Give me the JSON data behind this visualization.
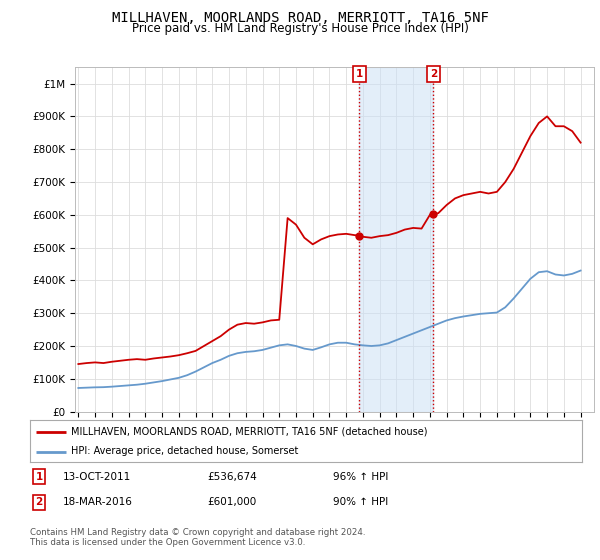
{
  "title": "MILLHAVEN, MOORLANDS ROAD, MERRIOTT, TA16 5NF",
  "subtitle": "Price paid vs. HM Land Registry's House Price Index (HPI)",
  "title_fontsize": 10,
  "subtitle_fontsize": 8.5,
  "ylim": [
    0,
    1050000
  ],
  "yticks": [
    0,
    100000,
    200000,
    300000,
    400000,
    500000,
    600000,
    700000,
    800000,
    900000,
    1000000
  ],
  "ytick_labels": [
    "£0",
    "£100K",
    "£200K",
    "£300K",
    "£400K",
    "£500K",
    "£600K",
    "£700K",
    "£800K",
    "£900K",
    "£1M"
  ],
  "xlim_start": 1994.8,
  "xlim_end": 2025.8,
  "transaction1_date": 2011.79,
  "transaction1_price": 536674,
  "transaction1_label": "1",
  "transaction2_date": 2016.21,
  "transaction2_price": 601000,
  "transaction2_label": "2",
  "shade_color": "#cce0f5",
  "shade_alpha": 0.55,
  "vline_color": "#cc0000",
  "vline_style": ":",
  "red_line_color": "#cc0000",
  "blue_line_color": "#6699cc",
  "legend_label_red": "MILLHAVEN, MOORLANDS ROAD, MERRIOTT, TA16 5NF (detached house)",
  "legend_label_blue": "HPI: Average price, detached house, Somerset",
  "footer_text": "Contains HM Land Registry data © Crown copyright and database right 2024.\nThis data is licensed under the Open Government Licence v3.0.",
  "background_color": "#ffffff",
  "grid_color": "#dddddd",
  "red_hpi_data": [
    [
      1995.0,
      145000
    ],
    [
      1995.5,
      148000
    ],
    [
      1996.0,
      150000
    ],
    [
      1996.5,
      148000
    ],
    [
      1997.0,
      152000
    ],
    [
      1997.5,
      155000
    ],
    [
      1998.0,
      158000
    ],
    [
      1998.5,
      160000
    ],
    [
      1999.0,
      158000
    ],
    [
      1999.5,
      162000
    ],
    [
      2000.0,
      165000
    ],
    [
      2000.5,
      168000
    ],
    [
      2001.0,
      172000
    ],
    [
      2001.5,
      178000
    ],
    [
      2002.0,
      185000
    ],
    [
      2002.5,
      200000
    ],
    [
      2003.0,
      215000
    ],
    [
      2003.5,
      230000
    ],
    [
      2004.0,
      250000
    ],
    [
      2004.5,
      265000
    ],
    [
      2005.0,
      270000
    ],
    [
      2005.5,
      268000
    ],
    [
      2006.0,
      272000
    ],
    [
      2006.5,
      278000
    ],
    [
      2007.0,
      280000
    ],
    [
      2007.5,
      590000
    ],
    [
      2008.0,
      570000
    ],
    [
      2008.5,
      530000
    ],
    [
      2009.0,
      510000
    ],
    [
      2009.5,
      525000
    ],
    [
      2010.0,
      535000
    ],
    [
      2010.5,
      540000
    ],
    [
      2011.0,
      542000
    ],
    [
      2011.5,
      538000
    ],
    [
      2011.79,
      536674
    ],
    [
      2012.0,
      533000
    ],
    [
      2012.5,
      530000
    ],
    [
      2013.0,
      535000
    ],
    [
      2013.5,
      538000
    ],
    [
      2014.0,
      545000
    ],
    [
      2014.5,
      555000
    ],
    [
      2015.0,
      560000
    ],
    [
      2015.5,
      558000
    ],
    [
      2016.0,
      600000
    ],
    [
      2016.21,
      601000
    ],
    [
      2016.5,
      605000
    ],
    [
      2017.0,
      630000
    ],
    [
      2017.5,
      650000
    ],
    [
      2018.0,
      660000
    ],
    [
      2018.5,
      665000
    ],
    [
      2019.0,
      670000
    ],
    [
      2019.5,
      665000
    ],
    [
      2020.0,
      670000
    ],
    [
      2020.5,
      700000
    ],
    [
      2021.0,
      740000
    ],
    [
      2021.5,
      790000
    ],
    [
      2022.0,
      840000
    ],
    [
      2022.5,
      880000
    ],
    [
      2023.0,
      900000
    ],
    [
      2023.5,
      870000
    ],
    [
      2024.0,
      870000
    ],
    [
      2024.5,
      855000
    ],
    [
      2025.0,
      820000
    ]
  ],
  "blue_hpi_data": [
    [
      1995.0,
      72000
    ],
    [
      1995.5,
      73000
    ],
    [
      1996.0,
      74000
    ],
    [
      1996.5,
      74500
    ],
    [
      1997.0,
      76000
    ],
    [
      1997.5,
      78000
    ],
    [
      1998.0,
      80000
    ],
    [
      1998.5,
      82000
    ],
    [
      1999.0,
      85000
    ],
    [
      1999.5,
      89000
    ],
    [
      2000.0,
      93000
    ],
    [
      2000.5,
      98000
    ],
    [
      2001.0,
      103000
    ],
    [
      2001.5,
      111000
    ],
    [
      2002.0,
      122000
    ],
    [
      2002.5,
      135000
    ],
    [
      2003.0,
      148000
    ],
    [
      2003.5,
      158000
    ],
    [
      2004.0,
      170000
    ],
    [
      2004.5,
      178000
    ],
    [
      2005.0,
      182000
    ],
    [
      2005.5,
      184000
    ],
    [
      2006.0,
      188000
    ],
    [
      2006.5,
      195000
    ],
    [
      2007.0,
      202000
    ],
    [
      2007.5,
      205000
    ],
    [
      2008.0,
      200000
    ],
    [
      2008.5,
      192000
    ],
    [
      2009.0,
      188000
    ],
    [
      2009.5,
      196000
    ],
    [
      2010.0,
      205000
    ],
    [
      2010.5,
      210000
    ],
    [
      2011.0,
      210000
    ],
    [
      2011.5,
      205000
    ],
    [
      2012.0,
      202000
    ],
    [
      2012.5,
      200000
    ],
    [
      2013.0,
      202000
    ],
    [
      2013.5,
      208000
    ],
    [
      2014.0,
      218000
    ],
    [
      2014.5,
      228000
    ],
    [
      2015.0,
      238000
    ],
    [
      2015.5,
      248000
    ],
    [
      2016.0,
      258000
    ],
    [
      2016.5,
      268000
    ],
    [
      2017.0,
      278000
    ],
    [
      2017.5,
      285000
    ],
    [
      2018.0,
      290000
    ],
    [
      2018.5,
      294000
    ],
    [
      2019.0,
      298000
    ],
    [
      2019.5,
      300000
    ],
    [
      2020.0,
      302000
    ],
    [
      2020.5,
      318000
    ],
    [
      2021.0,
      345000
    ],
    [
      2021.5,
      375000
    ],
    [
      2022.0,
      405000
    ],
    [
      2022.5,
      425000
    ],
    [
      2023.0,
      428000
    ],
    [
      2023.5,
      418000
    ],
    [
      2024.0,
      415000
    ],
    [
      2024.5,
      420000
    ],
    [
      2025.0,
      430000
    ]
  ]
}
